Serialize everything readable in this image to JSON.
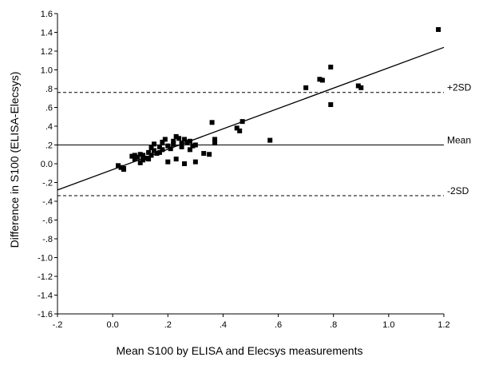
{
  "chart_data": {
    "type": "scatter",
    "title": "",
    "xlabel": "Mean S100 by ELISA and Elecsys measurements",
    "ylabel": "Difference in S100 (ELISA-Elecsys)",
    "xlim": [
      -0.2,
      1.2
    ],
    "ylim": [
      -1.6,
      1.6
    ],
    "grid": false,
    "x_ticks": [
      {
        "value": -0.2,
        "label": "-.2"
      },
      {
        "value": 0.0,
        "label": "0.0"
      },
      {
        "value": 0.2,
        "label": ".2"
      },
      {
        "value": 0.4,
        "label": ".4"
      },
      {
        "value": 0.6,
        "label": ".6"
      },
      {
        "value": 0.8,
        "label": ".8"
      },
      {
        "value": 1.0,
        "label": "1.0"
      },
      {
        "value": 1.2,
        "label": "1.2"
      }
    ],
    "y_ticks": [
      {
        "value": 1.6,
        "label": "1.6"
      },
      {
        "value": 1.4,
        "label": "1.4"
      },
      {
        "value": 1.2,
        "label": "1.2"
      },
      {
        "value": 1.0,
        "label": "1.0"
      },
      {
        "value": 0.8,
        "label": ".8"
      },
      {
        "value": 0.6,
        "label": ".6"
      },
      {
        "value": 0.4,
        "label": ".4"
      },
      {
        "value": 0.2,
        "label": ".2"
      },
      {
        "value": 0.0,
        "label": "0.0"
      },
      {
        "value": -0.2,
        "label": "-.2"
      },
      {
        "value": -0.4,
        "label": "-.4"
      },
      {
        "value": -0.6,
        "label": "-.6"
      },
      {
        "value": -0.8,
        "label": "-.8"
      },
      {
        "value": -1.0,
        "label": "-1.0"
      },
      {
        "value": -1.2,
        "label": "-1.2"
      },
      {
        "value": -1.4,
        "label": "-1.4"
      },
      {
        "value": -1.6,
        "label": "-1.6"
      }
    ],
    "reference_lines": [
      {
        "label": "+2SD",
        "y": 0.76,
        "style": "dashed"
      },
      {
        "label": "Mean",
        "y": 0.2,
        "style": "solid"
      },
      {
        "label": "-2SD",
        "y": -0.34,
        "style": "dashed"
      }
    ],
    "regression_line": {
      "x": [
        -0.2,
        1.2
      ],
      "y": [
        -0.28,
        1.24
      ]
    },
    "points": [
      {
        "x": 0.02,
        "y": -0.02
      },
      {
        "x": 0.03,
        "y": -0.04
      },
      {
        "x": 0.04,
        "y": -0.06
      },
      {
        "x": 0.04,
        "y": -0.05
      },
      {
        "x": 0.07,
        "y": 0.08
      },
      {
        "x": 0.08,
        "y": 0.05
      },
      {
        "x": 0.08,
        "y": 0.09
      },
      {
        "x": 0.09,
        "y": 0.07
      },
      {
        "x": 0.1,
        "y": 0.1
      },
      {
        "x": 0.1,
        "y": 0.01
      },
      {
        "x": 0.11,
        "y": 0.04
      },
      {
        "x": 0.11,
        "y": 0.09
      },
      {
        "x": 0.12,
        "y": 0.06
      },
      {
        "x": 0.13,
        "y": 0.12
      },
      {
        "x": 0.13,
        "y": 0.05
      },
      {
        "x": 0.14,
        "y": 0.17
      },
      {
        "x": 0.14,
        "y": 0.09
      },
      {
        "x": 0.15,
        "y": 0.14
      },
      {
        "x": 0.15,
        "y": 0.21
      },
      {
        "x": 0.16,
        "y": 0.11
      },
      {
        "x": 0.17,
        "y": 0.18
      },
      {
        "x": 0.17,
        "y": 0.12
      },
      {
        "x": 0.18,
        "y": 0.15
      },
      {
        "x": 0.18,
        "y": 0.23
      },
      {
        "x": 0.19,
        "y": 0.26
      },
      {
        "x": 0.2,
        "y": 0.19
      },
      {
        "x": 0.2,
        "y": 0.02
      },
      {
        "x": 0.21,
        "y": 0.16
      },
      {
        "x": 0.22,
        "y": 0.24
      },
      {
        "x": 0.22,
        "y": 0.21
      },
      {
        "x": 0.23,
        "y": 0.29
      },
      {
        "x": 0.23,
        "y": 0.05
      },
      {
        "x": 0.24,
        "y": 0.27
      },
      {
        "x": 0.25,
        "y": 0.22
      },
      {
        "x": 0.25,
        "y": 0.18
      },
      {
        "x": 0.26,
        "y": 0.26
      },
      {
        "x": 0.26,
        "y": 0.0
      },
      {
        "x": 0.27,
        "y": 0.23
      },
      {
        "x": 0.28,
        "y": 0.15
      },
      {
        "x": 0.28,
        "y": 0.24
      },
      {
        "x": 0.29,
        "y": 0.19
      },
      {
        "x": 0.3,
        "y": 0.2
      },
      {
        "x": 0.3,
        "y": 0.02
      },
      {
        "x": 0.33,
        "y": 0.11
      },
      {
        "x": 0.35,
        "y": 0.1
      },
      {
        "x": 0.36,
        "y": 0.44
      },
      {
        "x": 0.37,
        "y": 0.22
      },
      {
        "x": 0.37,
        "y": 0.26
      },
      {
        "x": 0.45,
        "y": 0.38
      },
      {
        "x": 0.46,
        "y": 0.35
      },
      {
        "x": 0.47,
        "y": 0.45
      },
      {
        "x": 0.57,
        "y": 0.25
      },
      {
        "x": 0.7,
        "y": 0.81
      },
      {
        "x": 0.75,
        "y": 0.9
      },
      {
        "x": 0.76,
        "y": 0.89
      },
      {
        "x": 0.79,
        "y": 1.03
      },
      {
        "x": 0.79,
        "y": 0.63
      },
      {
        "x": 0.89,
        "y": 0.83
      },
      {
        "x": 0.9,
        "y": 0.81
      },
      {
        "x": 1.18,
        "y": 1.43
      }
    ]
  }
}
